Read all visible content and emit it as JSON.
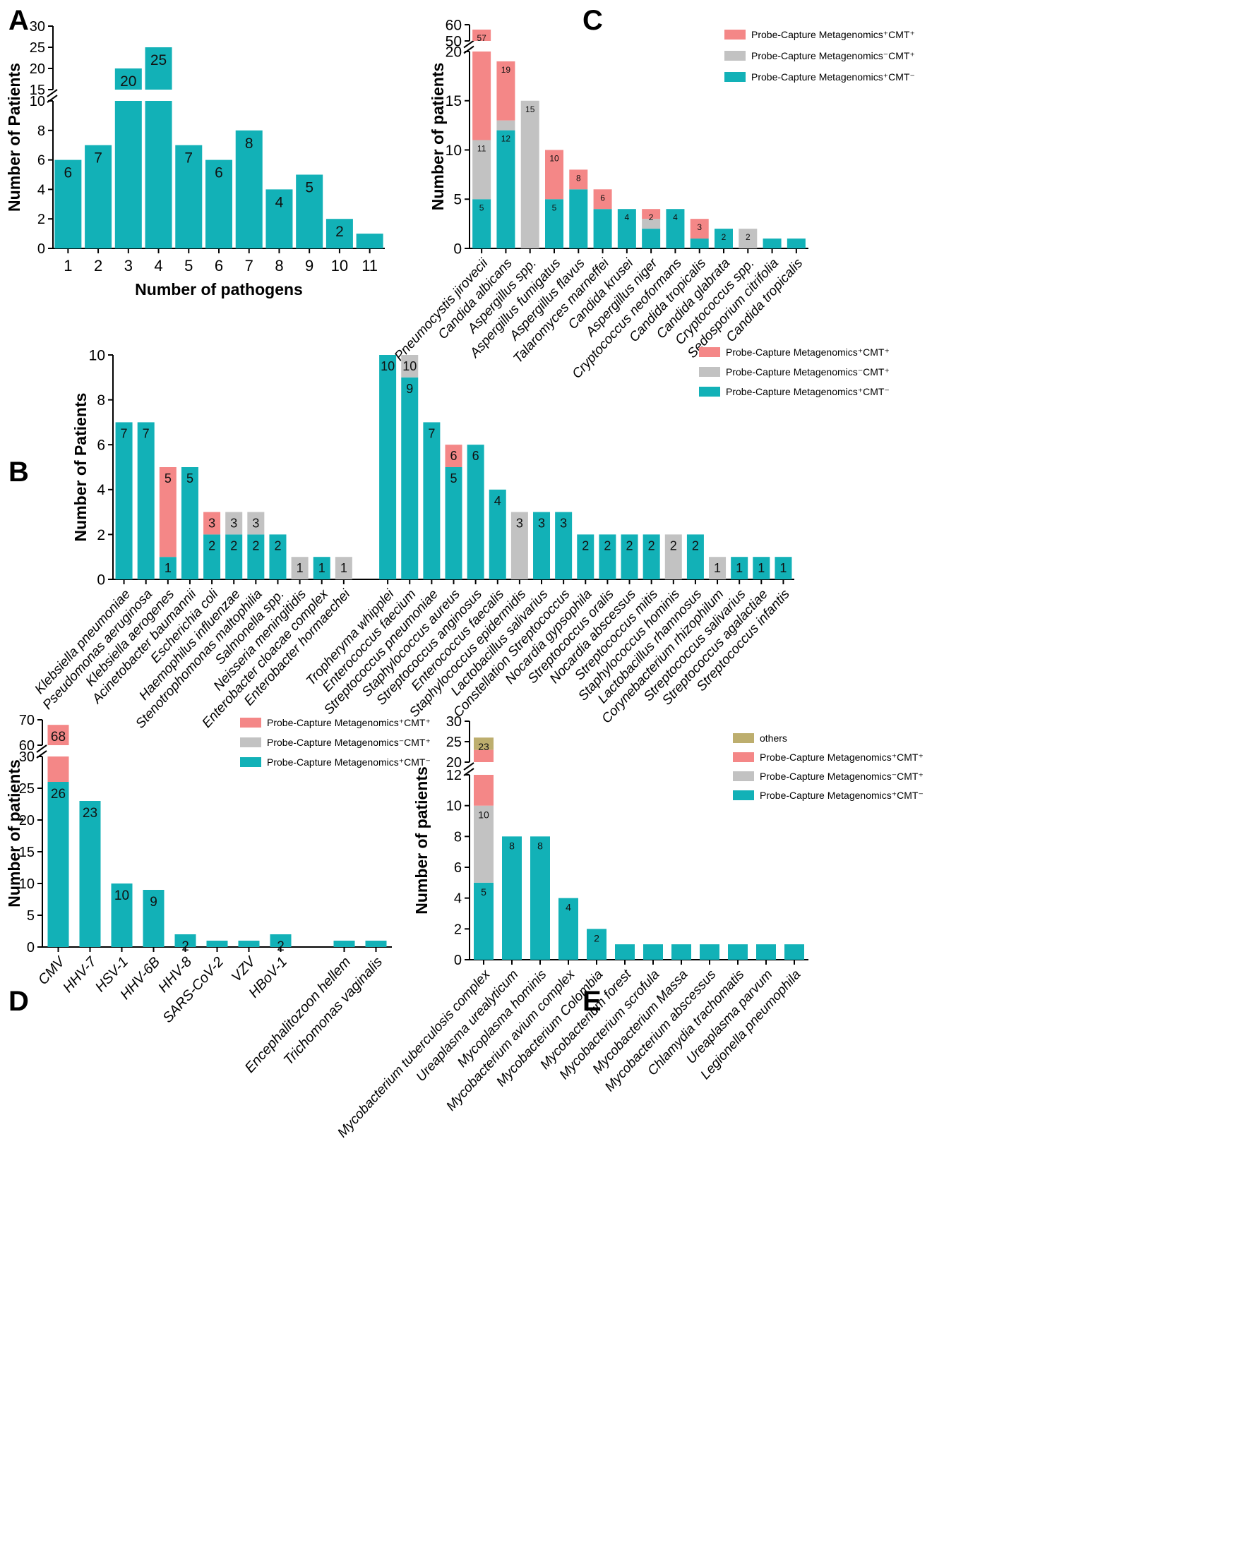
{
  "colors": {
    "teal": "#12B1B7",
    "pink": "#F48787",
    "grey": "#C2C2C2",
    "olive": "#BDAE6E",
    "axis": "#000000"
  },
  "legend_labels": {
    "pos_pos": "Probe-Capture Metagenomics⁺CMT⁺",
    "neg_pos": "Probe-Capture Metagenomics⁻CMT⁺",
    "pos_neg": "Probe-Capture Metagenomics⁺CMT⁻",
    "others": "others"
  },
  "chart_data": [
    {
      "panel": "A",
      "type": "bar",
      "xlabel": "Number of pathogens",
      "ylabel": "Number of Patients",
      "categories": [
        "1",
        "2",
        "3",
        "4",
        "5",
        "6",
        "7",
        "8",
        "9",
        "10",
        "11"
      ],
      "series": [
        {
          "name": "patients",
          "values": [
            6,
            7,
            20,
            25,
            7,
            6,
            8,
            4,
            5,
            2,
            1
          ]
        }
      ],
      "labels": [
        "6",
        "7",
        "20",
        "25",
        "7",
        "6",
        "8",
        "4",
        "5",
        "2",
        ""
      ],
      "lower_range": [
        0,
        10
      ],
      "lower_ticks": [
        "0",
        "2",
        "4",
        "6",
        "8",
        "10"
      ],
      "upper_range": [
        15,
        30
      ],
      "upper_ticks": [
        "15",
        "20",
        "25",
        "30"
      ]
    },
    {
      "panel": "C",
      "type": "bar",
      "stacked": true,
      "xlabel": "",
      "ylabel": "Number of patients",
      "categories": [
        "Pneumocystis jirovecii",
        "Candida albicans",
        "Aspergillus spp.",
        "Aspergillus fumigatus",
        "Aspergillus flavus",
        "Talaromyces marneffei",
        "Candida krusei",
        "Aspergillus niger",
        "Cryptococcus neoformans",
        "Candida tropicalis",
        "Candida glabrata",
        "Cryptococcus spp.",
        "Sedosporium citrifolia",
        "Candida tropicalis"
      ],
      "series": [
        {
          "name": "pos_neg",
          "values": [
            5,
            12,
            0,
            5,
            6,
            4,
            4,
            2,
            4,
            1,
            2,
            0,
            1,
            1
          ]
        },
        {
          "name": "neg_pos",
          "values": [
            6,
            1,
            15,
            0,
            0,
            0,
            0,
            1,
            0,
            0,
            0,
            2,
            0,
            0
          ]
        },
        {
          "name": "pos_pos",
          "values": [
            46,
            6,
            0,
            5,
            2,
            2,
            0,
            1,
            0,
            2,
            0,
            0,
            0,
            0
          ]
        }
      ],
      "labels": [
        "57",
        "19",
        "15",
        "10",
        "8",
        "6",
        "4",
        "2",
        "4",
        "3",
        "2",
        "2",
        "",
        ""
      ],
      "sublabels": [
        "5",
        "12",
        "",
        "5",
        "",
        "",
        "",
        "",
        "",
        "",
        "",
        "",
        "",
        ""
      ],
      "midlabels": [
        "11",
        "",
        "",
        "",
        "",
        "",
        "",
        "",
        "",
        "",
        "",
        "",
        "",
        ""
      ],
      "lower_range": [
        0,
        20
      ],
      "lower_ticks": [
        "0",
        "5",
        "10",
        "15",
        "20"
      ],
      "upper_range": [
        50,
        60
      ],
      "upper_ticks": [
        "50",
        "60"
      ],
      "legend": [
        "pos_pos",
        "neg_pos",
        "pos_neg"
      ]
    },
    {
      "panel": "B",
      "type": "bar",
      "stacked": true,
      "xlabel": "",
      "ylabel": "Number of Patients",
      "categories": [
        "Klebsiella pneumoniae",
        "Pseudomonas aeruginosa",
        "Klebsiella aerogenes",
        "Acinetobacter baumannii",
        "Escherichia coli",
        "Haemophilus influenzae",
        "Stenotrophomonas maltophilia",
        "Salmonella spp.",
        "Neisseria meningitidis",
        "Enterobacter cloacae complex",
        "Enterobacter hormaechei",
        "",
        "Tropheryma whipplei",
        "Enterococcus faecium",
        "Streptococcus pneumoniae",
        "Staphylococcus aureus",
        "Streptococcus anginosus",
        "Enterococcus faecalis",
        "Staphylococcus epidermidis",
        "Lactobacillus salivarius",
        "Constellation Streptococcus",
        "Nocardia gypsophila",
        "Streptococcus oralis",
        "Nocardia abscessus",
        "Streptococcus mitis",
        "Staphylococcus hominis",
        "Lactobacillus rhamnosus",
        "Corynebacterium rhizophilum",
        "Streptococcus salivarius",
        "Streptococcus agalactiae",
        "Streptococcus infantis"
      ],
      "series": [
        {
          "name": "pos_neg",
          "values": [
            7,
            7,
            1,
            5,
            2,
            2,
            2,
            2,
            0,
            1,
            0,
            0,
            10,
            9,
            7,
            5,
            6,
            4,
            0,
            3,
            3,
            2,
            2,
            2,
            2,
            0,
            2,
            0,
            1,
            1,
            1
          ]
        },
        {
          "name": "neg_pos",
          "values": [
            0,
            0,
            0,
            0,
            0,
            1,
            1,
            0,
            1,
            0,
            1,
            0,
            0,
            1,
            0,
            0,
            0,
            0,
            3,
            0,
            0,
            0,
            0,
            0,
            0,
            2,
            0,
            1,
            0,
            0,
            0
          ]
        },
        {
          "name": "pos_pos",
          "values": [
            0,
            0,
            4,
            0,
            1,
            0,
            0,
            0,
            0,
            0,
            0,
            0,
            0,
            0,
            0,
            1,
            0,
            0,
            0,
            0,
            0,
            0,
            0,
            0,
            0,
            0,
            0,
            0,
            0,
            0,
            0
          ]
        }
      ],
      "labels": [
        "7",
        "7",
        "5",
        "5",
        "3",
        "3",
        "3",
        "2",
        "1",
        "1",
        "1",
        "",
        "10",
        "10",
        "7",
        "6",
        "6",
        "4",
        "3",
        "3",
        "3",
        "2",
        "2",
        "2",
        "2",
        "2",
        "2",
        "1",
        "1",
        "1",
        "1"
      ],
      "sublabels": [
        "",
        "",
        "1",
        "",
        "2",
        "2",
        "2",
        "",
        "",
        "",
        "",
        "",
        "",
        "9",
        "",
        "5",
        "",
        "",
        "",
        "",
        "",
        "",
        "",
        "",
        "",
        "",
        "",
        "",
        "",
        "",
        ""
      ],
      "range": [
        0,
        10
      ],
      "ticks": [
        "0",
        "2",
        "4",
        "6",
        "8",
        "10"
      ],
      "legend": [
        "pos_pos",
        "neg_pos",
        "pos_neg"
      ]
    },
    {
      "panel": "D",
      "type": "bar",
      "stacked": true,
      "xlabel": "",
      "ylabel": "Number of patients",
      "categories": [
        "CMV",
        "HHV-7",
        "HSV-1",
        "HHV-6B",
        "HHV-8",
        "SARS-CoV-2",
        "VZV",
        "HBoV-1",
        "",
        "Encephalitozoon hellem",
        "Trichomonas vaginalis"
      ],
      "series": [
        {
          "name": "pos_neg",
          "values": [
            26,
            23,
            10,
            9,
            2,
            1,
            1,
            2,
            0,
            1,
            1
          ]
        },
        {
          "name": "pos_pos",
          "values": [
            42,
            0,
            0,
            0,
            0,
            0,
            0,
            0,
            0,
            0,
            0
          ]
        }
      ],
      "labels": [
        "68",
        "23",
        "10",
        "9",
        "2",
        "",
        "",
        "2",
        "",
        "",
        ""
      ],
      "sublabels": [
        "26",
        "",
        "",
        "",
        "",
        "",
        "",
        "",
        "",
        "",
        ""
      ],
      "lower_range": [
        0,
        30
      ],
      "lower_ticks": [
        "0",
        "5",
        "10",
        "15",
        "20",
        "25",
        "30"
      ],
      "upper_range": [
        60,
        70
      ],
      "upper_ticks": [
        "60",
        "70"
      ],
      "legend": [
        "pos_pos",
        "neg_pos",
        "pos_neg"
      ]
    },
    {
      "panel": "E",
      "type": "bar",
      "stacked": true,
      "xlabel": "",
      "ylabel": "Number of patients",
      "categories": [
        "Mycobacterium tuberculosis complex",
        "Ureaplasma urealyticum",
        "Mycoplasma hominis",
        "Mycobacterium avium complex",
        "Mycobacterium Colombia",
        "Mycobacterium forest",
        "Mycobacterium scrofula",
        "Mycobacterium Massa",
        "Mycobacterium abscessus",
        "Chlamydia trachomatis",
        "Ureaplasma parvum",
        "Legionella pneumophila"
      ],
      "series": [
        {
          "name": "pos_neg",
          "values": [
            5,
            8,
            8,
            4,
            2,
            1,
            1,
            1,
            1,
            1,
            1,
            1
          ]
        },
        {
          "name": "neg_pos",
          "values": [
            5,
            0,
            0,
            0,
            0,
            0,
            0,
            0,
            0,
            0,
            0,
            0
          ]
        },
        {
          "name": "pos_pos",
          "values": [
            13,
            0,
            0,
            0,
            0,
            0,
            0,
            0,
            0,
            0,
            0,
            0
          ]
        },
        {
          "name": "others",
          "values": [
            3,
            0,
            0,
            0,
            0,
            0,
            0,
            0,
            0,
            0,
            0,
            0
          ]
        }
      ],
      "labels": [
        "23",
        "8",
        "8",
        "4",
        "2",
        "",
        "",
        "",
        "",
        "",
        "",
        ""
      ],
      "sublabels": [
        "5",
        "",
        "",
        "",
        "",
        "",
        "",
        "",
        "",
        "",
        "",
        ""
      ],
      "midlabels": [
        "10",
        "",
        "",
        "",
        "",
        "",
        "",
        "",
        "",
        "",
        "",
        ""
      ],
      "lower_range": [
        0,
        12
      ],
      "lower_ticks": [
        "0",
        "2",
        "4",
        "6",
        "8",
        "10",
        "12"
      ],
      "upper_range": [
        20,
        30
      ],
      "upper_ticks": [
        "20",
        "25",
        "30"
      ],
      "legend": [
        "others",
        "pos_pos",
        "neg_pos",
        "pos_neg"
      ]
    }
  ]
}
